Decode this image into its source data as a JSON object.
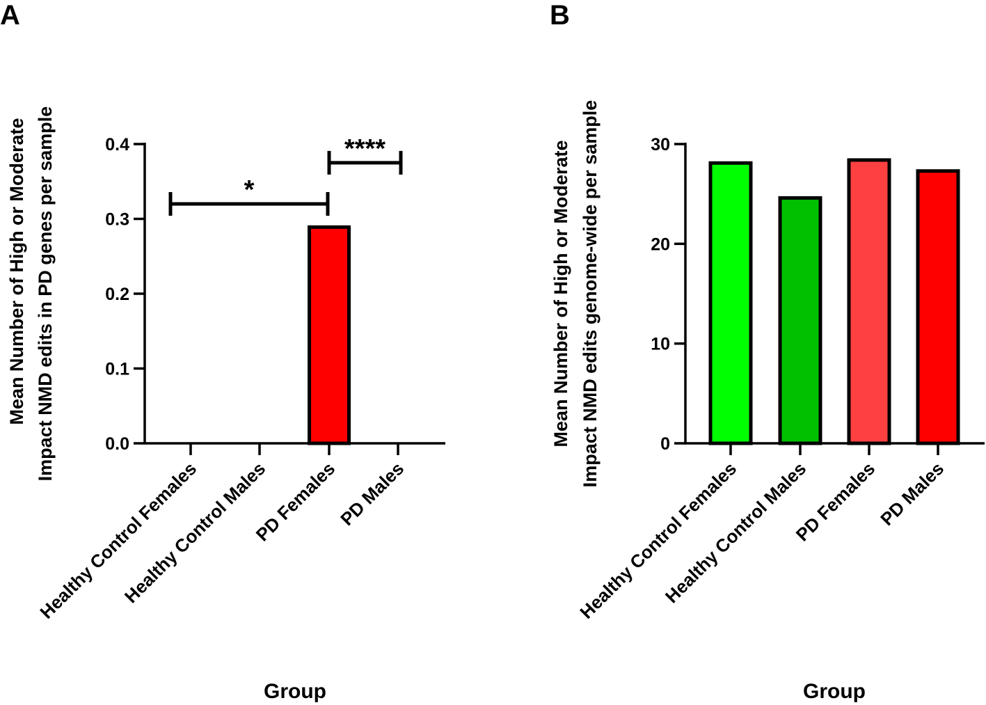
{
  "chart_data": [
    {
      "panel": "A",
      "type": "bar",
      "categories": [
        "Healthy Control Females",
        "Healthy Control Males",
        "PD Females",
        "PD Males"
      ],
      "values": [
        0,
        0,
        0.289,
        0
      ],
      "colors": [
        "#00ff00",
        "#00c000",
        "#ff0000",
        "#ff0000"
      ],
      "ylim": [
        0,
        0.4
      ],
      "yticks": [
        "0.0",
        "0.1",
        "0.2",
        "0.3",
        "0.4"
      ],
      "ylabel_line1": "Mean Number of  High or Moderate",
      "ylabel_line2": "Impact NMD edits in  PD genes per sample",
      "xlabel": "Group",
      "significance": [
        {
          "from": "Healthy Control Females",
          "to": "PD Females",
          "label": "*",
          "y": 0.32
        },
        {
          "from": "PD Females",
          "to": "PD Males",
          "label": "****",
          "y": 0.375
        }
      ]
    },
    {
      "panel": "B",
      "type": "bar",
      "categories": [
        "Healthy Control Females",
        "Healthy Control Males",
        "PD Females",
        "PD Males"
      ],
      "values": [
        28.1,
        24.6,
        28.4,
        27.3
      ],
      "colors": [
        "#00ff00",
        "#00c000",
        "#ff4040",
        "#ff0000"
      ],
      "ylim": [
        0,
        30
      ],
      "yticks": [
        "0",
        "10",
        "20",
        "30"
      ],
      "ylabel_line1": "Mean Number of  High or Moderate",
      "ylabel_line2": "Impact NMD edits genome-wide  per sample",
      "xlabel": "Group",
      "significance": []
    }
  ]
}
